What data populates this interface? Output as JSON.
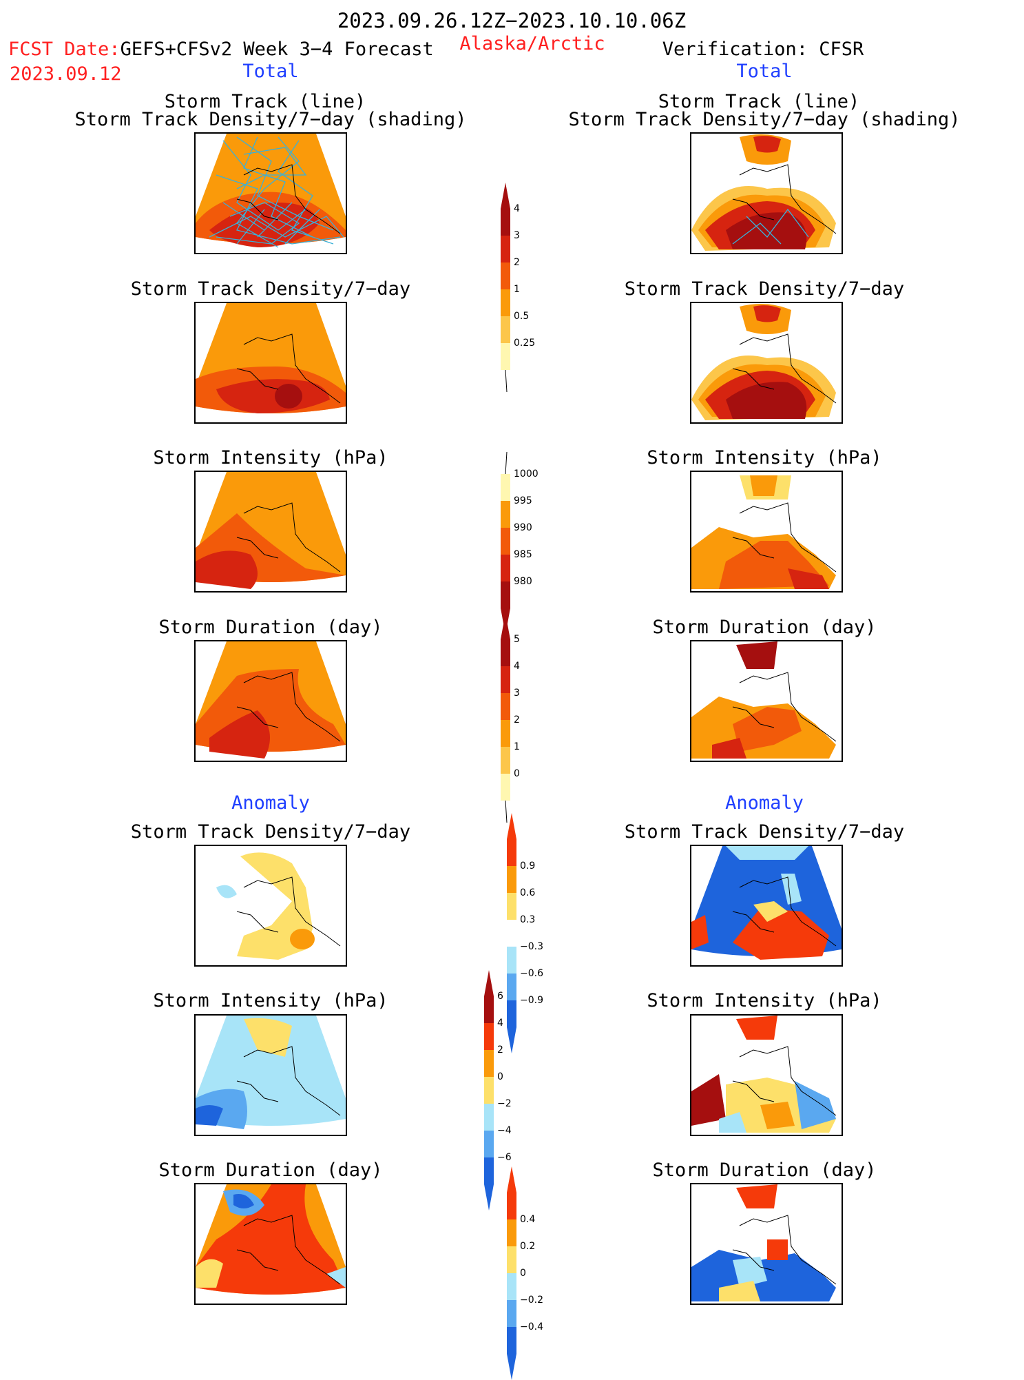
{
  "header": {
    "period": "2023.09.26.12Z−2023.10.10.06Z",
    "fcst_label": "FCST Date:",
    "fcst_source": "GEFS+CFSv2 Week 3−4 Forecast",
    "fcst_date": "2023.09.12",
    "region": "Alaska/Arctic",
    "verification": "Verification: CFSR"
  },
  "columns": {
    "left_total": "Total",
    "right_total": "Total",
    "left_anomaly": "Anomaly",
    "right_anomaly": "Anomaly"
  },
  "titles": {
    "track_line": "Storm Track (line)",
    "track_density_shading": "Storm Track Density/7−day (shading)",
    "track_density": "Storm Track Density/7−day",
    "intensity": "Storm Intensity (hPa)",
    "duration": "Storm Duration (day)"
  },
  "colorbars": {
    "density": {
      "labels": [
        "4",
        "3",
        "2",
        "1",
        "0.5",
        "0.25"
      ],
      "colors": [
        "#a50f0f",
        "#d62410",
        "#f25a0a",
        "#fa9a0a",
        "#fcc64a",
        "#fff7b0"
      ]
    },
    "intensity": {
      "labels": [
        "1000",
        "995",
        "990",
        "985",
        "980"
      ],
      "colors": [
        "#fff7b0",
        "#fa9a0a",
        "#f25a0a",
        "#d62410",
        "#a50f0f"
      ]
    },
    "duration": {
      "labels": [
        "5",
        "4",
        "3",
        "2",
        "1",
        "0"
      ],
      "colors": [
        "#a50f0f",
        "#d62410",
        "#f25a0a",
        "#fa9a0a",
        "#fcc64a",
        "#fff7b0"
      ]
    },
    "anom_density": {
      "labels": [
        "0.9",
        "0.6",
        "0.3",
        "−0.3",
        "−0.6",
        "−0.9"
      ],
      "colors": [
        "#f53a0a",
        "#fa9a0a",
        "#fde06a",
        "#ffffff",
        "#a8e4f8",
        "#5aa8f0",
        "#1e64dc"
      ]
    },
    "anom_intensity": {
      "labels": [
        "6",
        "4",
        "2",
        "0",
        "−2",
        "−4",
        "−6"
      ],
      "colors": [
        "#a50f0f",
        "#f53a0a",
        "#fa9a0a",
        "#fde06a",
        "#a8e4f8",
        "#5aa8f0",
        "#1e64dc"
      ]
    },
    "anom_duration": {
      "labels": [
        "0.4",
        "0.2",
        "0",
        "−0.2",
        "−0.4"
      ],
      "colors": [
        "#f53a0a",
        "#fa9a0a",
        "#fde06a",
        "#a8e4f8",
        "#5aa8f0",
        "#1e64dc"
      ]
    }
  },
  "palette": {
    "dark_red": "#a50f0f",
    "red": "#d62410",
    "orange_red": "#f25a0a",
    "orange": "#fa9a0a",
    "light_orange": "#fcc64a",
    "pale_yellow": "#fde06a",
    "light_blue": "#a8e4f8",
    "mid_blue": "#5aa8f0",
    "blue": "#1e64dc",
    "track_line": "#3ab0d8"
  }
}
